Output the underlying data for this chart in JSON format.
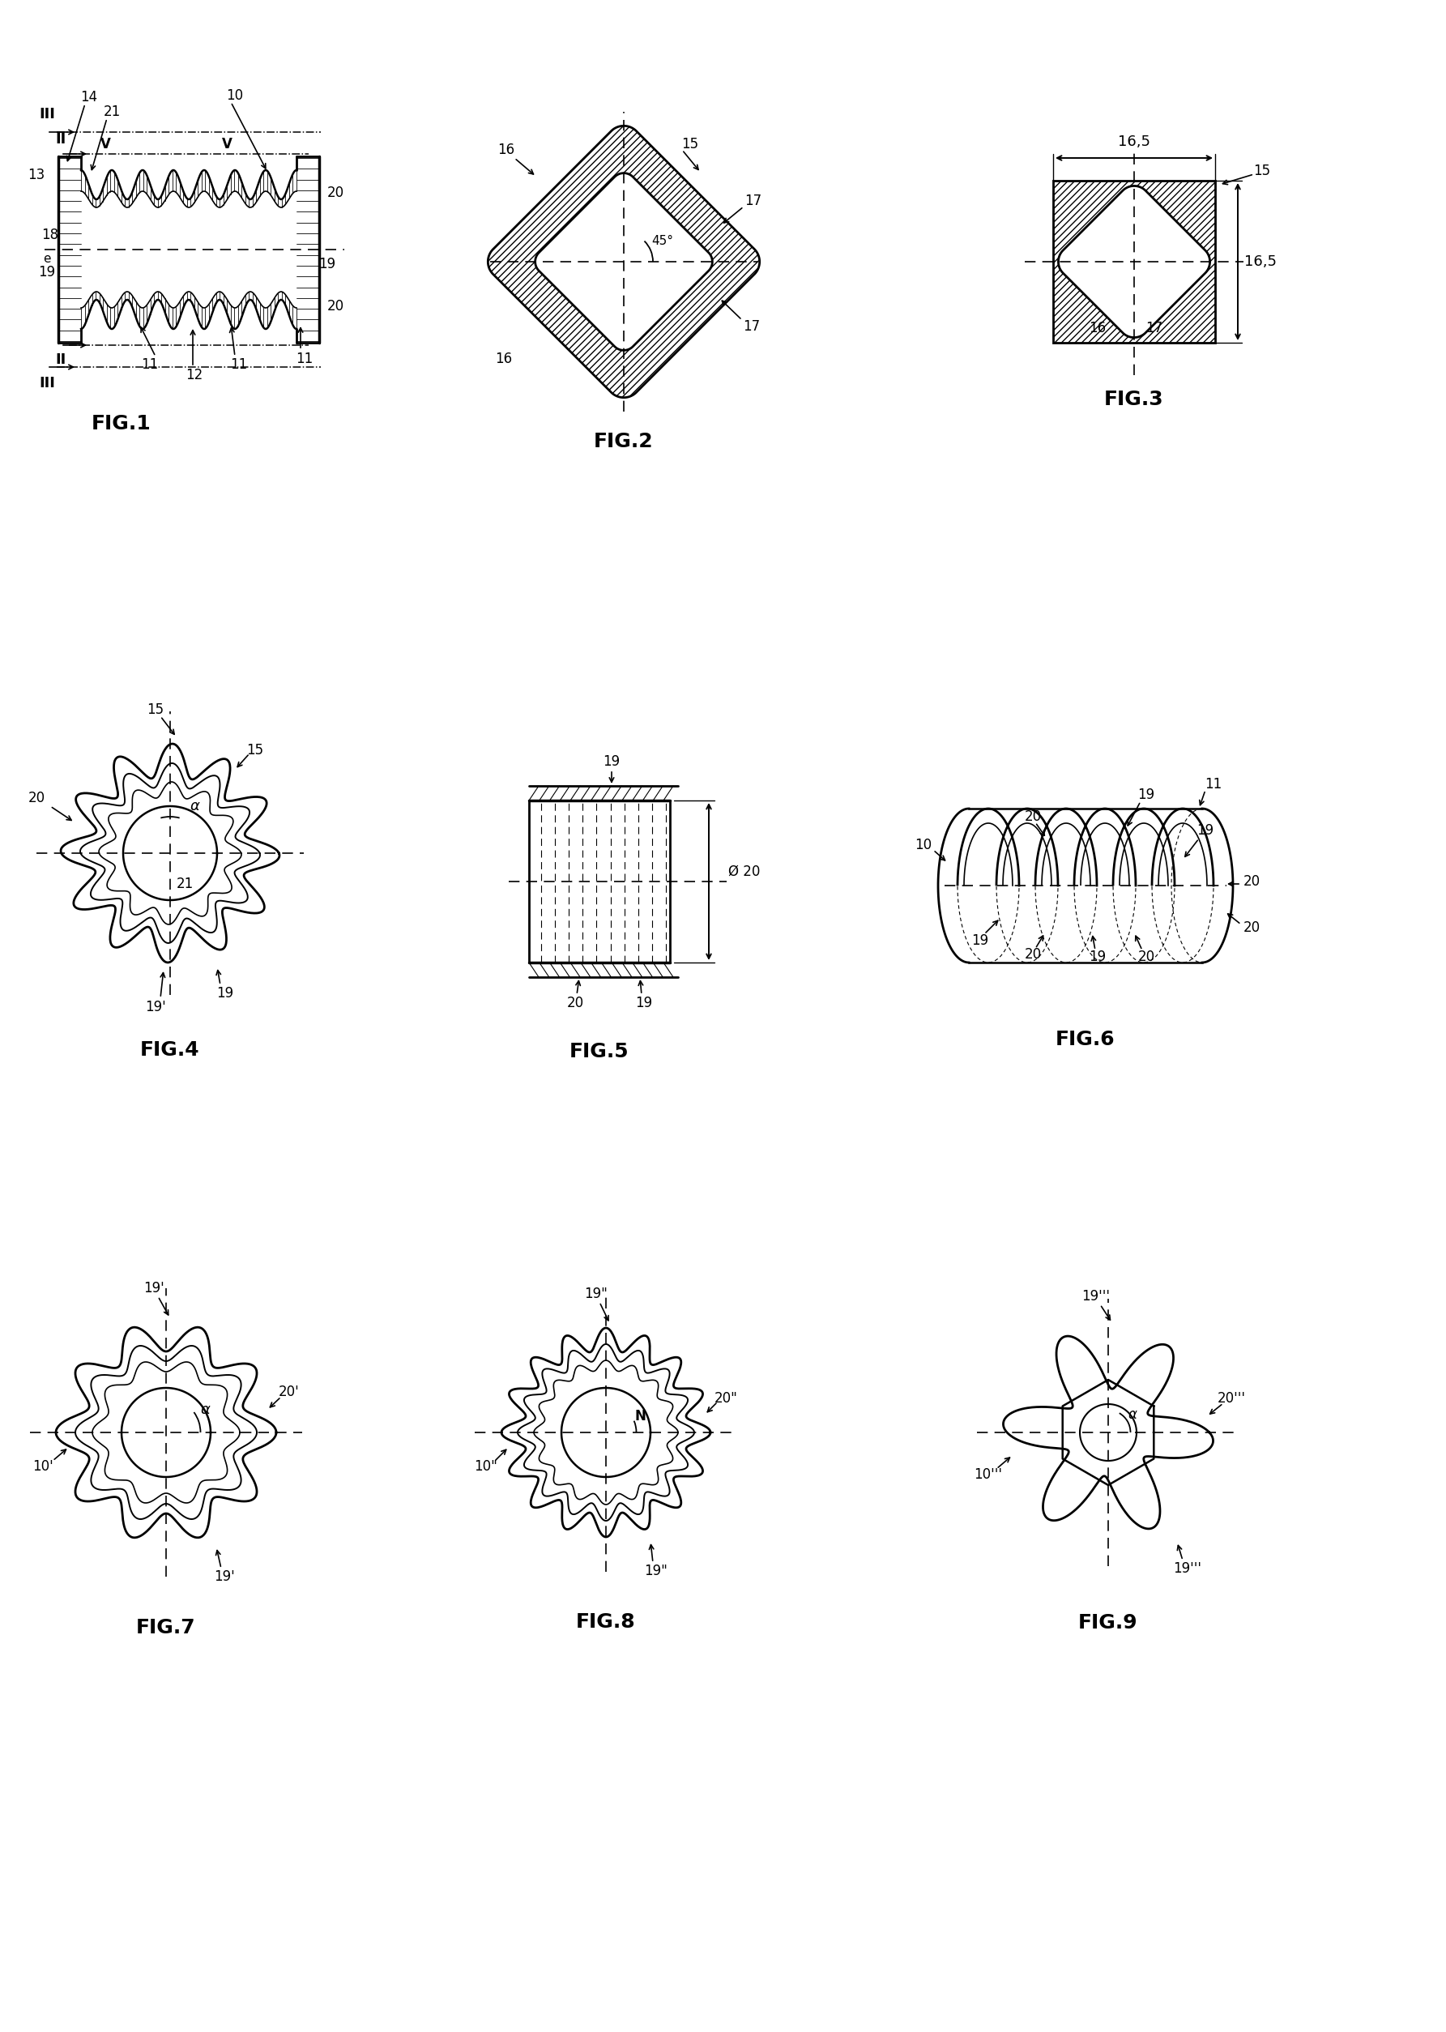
{
  "bg_color": "#ffffff",
  "line_color": "#000000",
  "fig_labels": [
    "FIG.1",
    "FIG.2",
    "FIG.3",
    "FIG.4",
    "FIG.5",
    "FIG.6",
    "FIG.7",
    "FIG.8",
    "FIG.9"
  ]
}
